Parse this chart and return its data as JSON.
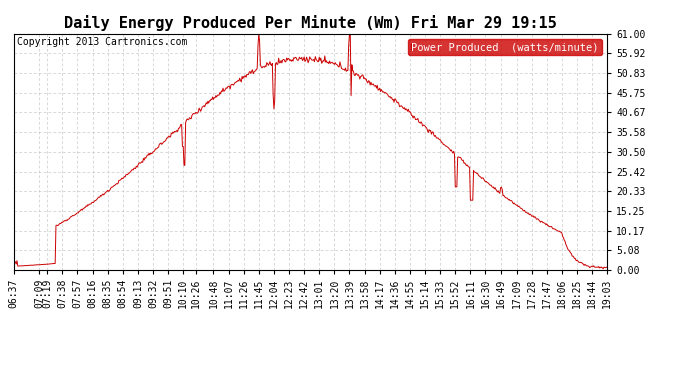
{
  "title": "Daily Energy Produced Per Minute (Wm) Fri Mar 29 19:15",
  "copyright": "Copyright 2013 Cartronics.com",
  "legend_label": "Power Produced  (watts/minute)",
  "legend_bg": "#cc0000",
  "legend_fg": "#ffffff",
  "line_color": "#cc0000",
  "bg_color": "#ffffff",
  "grid_color": "#bbbbbb",
  "ylim": [
    0,
    61.0
  ],
  "yticks": [
    0.0,
    5.08,
    10.17,
    15.25,
    20.33,
    25.42,
    30.5,
    35.58,
    40.67,
    45.75,
    50.83,
    55.92,
    61.0
  ],
  "xtick_labels": [
    "06:37",
    "07:09",
    "07:19",
    "07:38",
    "07:57",
    "08:16",
    "08:35",
    "08:54",
    "09:13",
    "09:32",
    "09:51",
    "10:10",
    "10:26",
    "10:48",
    "11:07",
    "11:26",
    "11:45",
    "12:04",
    "12:23",
    "12:42",
    "13:01",
    "13:20",
    "13:39",
    "13:58",
    "14:17",
    "14:36",
    "14:55",
    "15:14",
    "15:33",
    "15:52",
    "16:11",
    "16:30",
    "16:49",
    "17:09",
    "17:28",
    "17:47",
    "18:06",
    "18:25",
    "18:44",
    "19:03"
  ],
  "title_fontsize": 11,
  "copyright_fontsize": 7,
  "tick_fontsize": 7,
  "legend_fontsize": 7.5
}
